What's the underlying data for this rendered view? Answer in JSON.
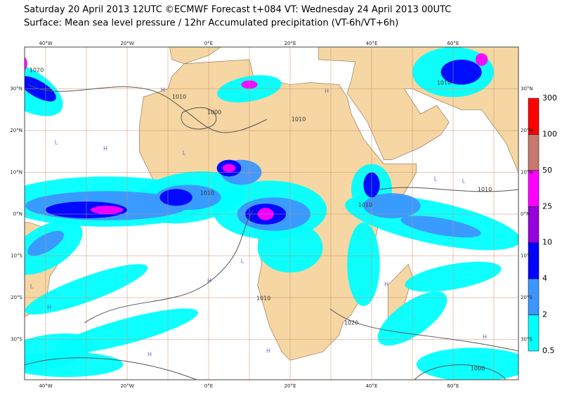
{
  "header": {
    "lines": [
      "Saturday 20 April 2013 12UTC ©ECMWF Forecast t+084 VT: Wednesday 24 April 2013 00UTC",
      "Surface: Mean sea level pressure / 12hr Accumulated precipitation (VT-6h/VT+6h)"
    ]
  },
  "map": {
    "lon_labels": [
      "40°W",
      "20°W",
      "0°E",
      "20°E",
      "40°E",
      "60°E"
    ],
    "lat_labels": [
      "30°N",
      "20°N",
      "10°N",
      "0°N",
      "10°S",
      "20°S",
      "30°S"
    ],
    "contour_labels": [
      "1020",
      "1010",
      "1010",
      "1000",
      "1010",
      "1010",
      "1010",
      "1010",
      "1020",
      "1000",
      "1010"
    ],
    "centers": [
      "H",
      "L",
      "H",
      "L",
      "L",
      "H",
      "H",
      "L",
      "H",
      "L",
      "H",
      "H",
      "L",
      "H",
      "H"
    ],
    "land_color": "#f6d6a2",
    "ocean_color": "#ffffff",
    "grid_color": "#c89070"
  },
  "legend": {
    "levels": [
      "0.5",
      "2",
      "4",
      "10",
      "25",
      "50",
      "100",
      "300"
    ],
    "colors": [
      "#00ffff",
      "#3c96ff",
      "#0000ff",
      "#9600dc",
      "#ff00ff",
      "#c8786e",
      "#ff0000"
    ]
  }
}
